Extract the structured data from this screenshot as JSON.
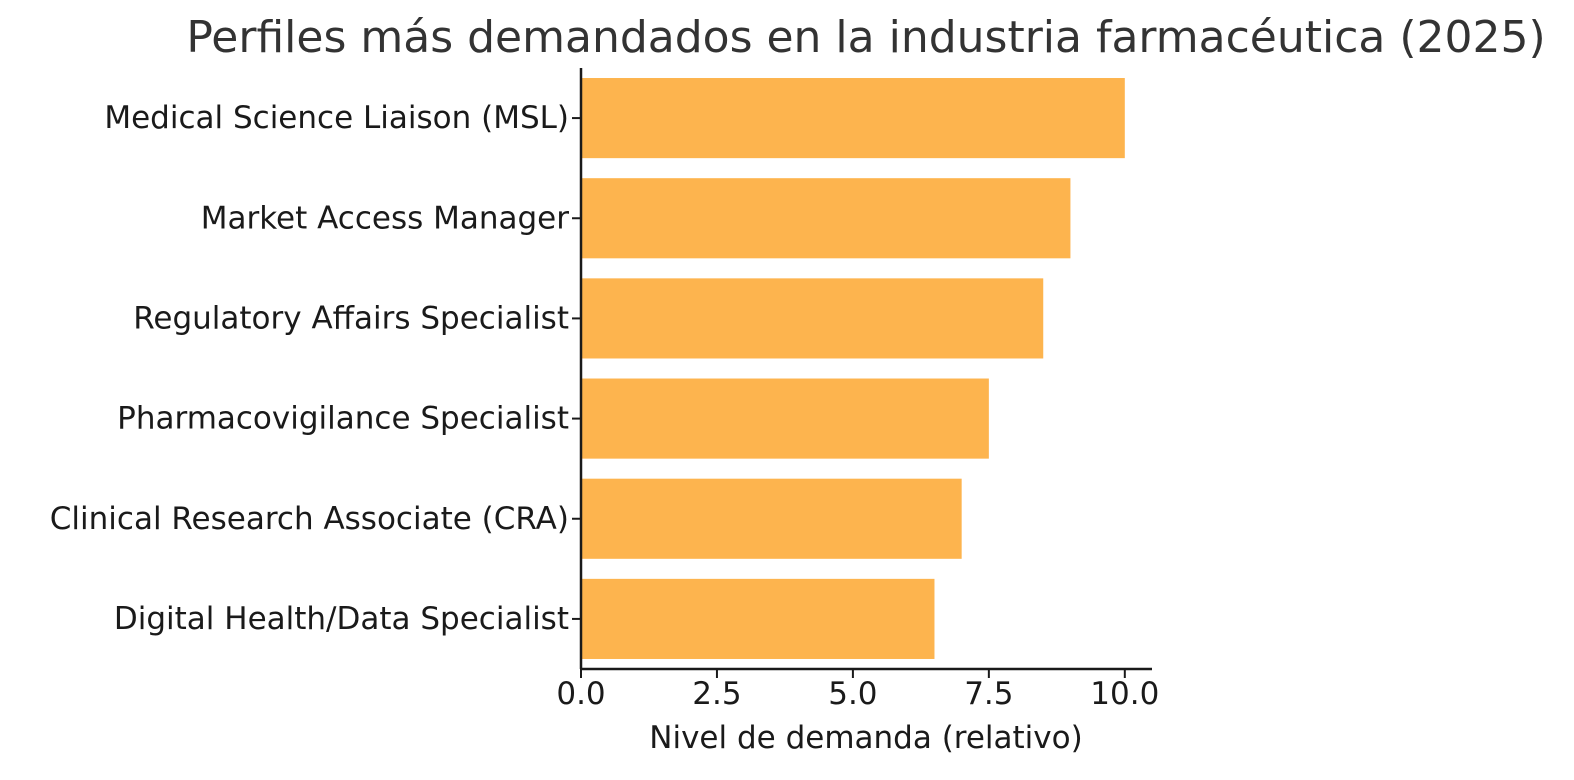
{
  "chart_data": {
    "type": "bar",
    "orientation": "horizontal",
    "title": "Perfiles más demandados en la industria farmacéutica (2025)",
    "xlabel": "Nivel de demanda (relativo)",
    "ylabel": "",
    "categories": [
      "Medical Science Liaison (MSL)",
      "Market Access Manager",
      "Regulatory Affairs Specialist",
      "Pharmacovigilance Specialist",
      "Clinical Research Associate (CRA)",
      "Digital Health/Data Specialist"
    ],
    "values": [
      10,
      9,
      8.5,
      7.5,
      7,
      6.5
    ],
    "xlim": [
      0,
      10.5
    ],
    "xticks": [
      "0.0",
      "2.5",
      "5.0",
      "7.5",
      "10.0"
    ],
    "grid": false,
    "legend": "none",
    "bar_color": "#FDB44E"
  }
}
